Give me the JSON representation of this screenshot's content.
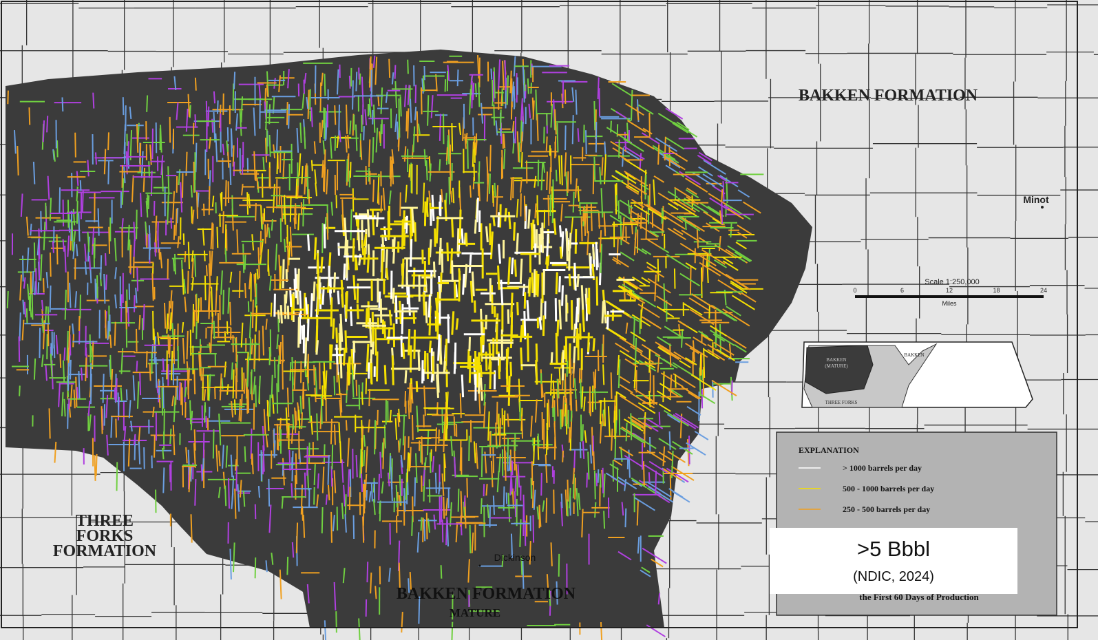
{
  "map": {
    "labels": {
      "bakken_north": "BAKKEN FORMATION",
      "minot": "Minot",
      "three_forks": [
        "THREE",
        "FORKS",
        "FORMATION"
      ],
      "dickinson": "Dickinson",
      "bakken_south": "BAKKEN FORMATION",
      "mature": "MATURE"
    },
    "scale": {
      "title": "Scale  1:250,000",
      "ticks": [
        "0",
        "6",
        "12",
        "18",
        "24"
      ],
      "unit": "Miles"
    },
    "inset": {
      "mature": [
        "BAKKEN",
        "(MATURE)"
      ],
      "bakken": "BAKKEN",
      "three_forks": "THREE FORKS"
    },
    "legend": {
      "title": "EXPLANATION",
      "items": [
        {
          "label": "> 1000 barrels per day",
          "color": "#ffffff"
        },
        {
          "label": "500 - 1000 barrels per day",
          "color": "#f5e000"
        },
        {
          "label": "250 - 500 barrels per day",
          "color": "#f0a020"
        }
      ],
      "footer": "the First 60 Days of Production"
    },
    "callout": {
      "value": ">5 Bbbl",
      "source": "(NDIC, 2024)"
    }
  }
}
